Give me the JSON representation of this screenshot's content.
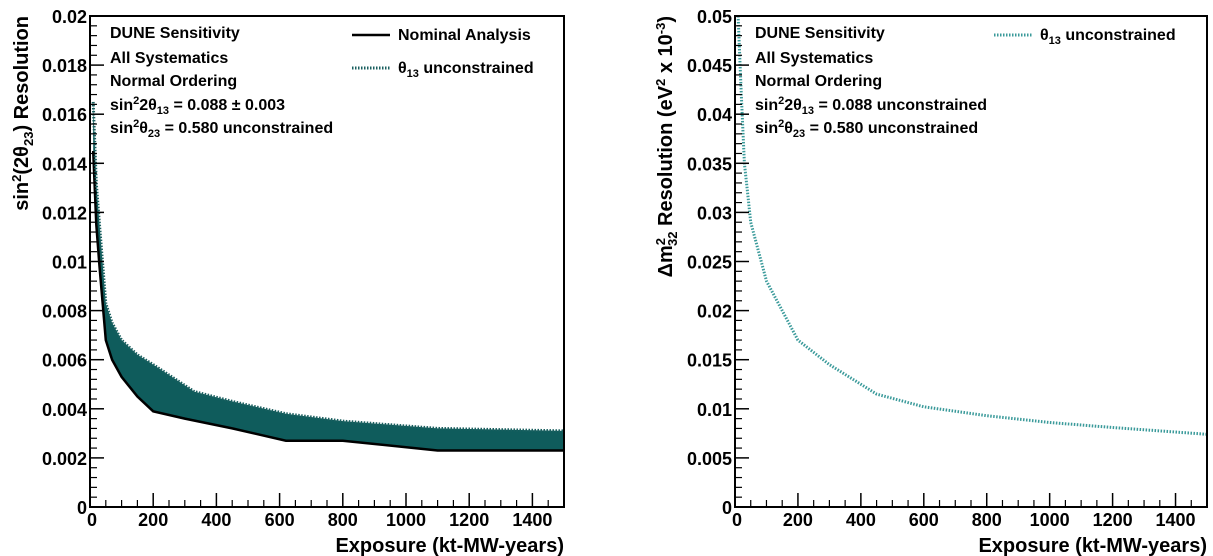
{
  "chart_data": [
    {
      "type": "area",
      "xlabel": "Exposure (kt-MW-years)",
      "ylabel_parts": [
        "sin",
        "2",
        "(2θ",
        "23",
        ") Resolution"
      ],
      "xlim": [
        0,
        1500
      ],
      "ylim": [
        0,
        0.02
      ],
      "xticks": [
        0,
        200,
        400,
        600,
        800,
        1000,
        1200,
        1400
      ],
      "xtick_labels": [
        "0",
        "200",
        "400",
        "600",
        "800",
        "1000",
        "1200",
        "1400"
      ],
      "yticks": [
        0,
        0.002,
        0.004,
        0.006,
        0.008,
        0.01,
        0.012,
        0.014,
        0.016,
        0.018,
        0.02
      ],
      "ytick_labels": [
        "0",
        "0.002",
        "0.004",
        "0.006",
        "0.008",
        "0.01",
        "0.012",
        "0.014",
        "0.016",
        "0.018",
        "0.02"
      ],
      "annotation": {
        "line1": "DUNE Sensitivity",
        "line2": "All Systematics",
        "line3": "Normal Ordering",
        "line4_parts": [
          "sin",
          "2",
          "2θ",
          "13",
          " = 0.088 ± 0.003"
        ],
        "line5_parts": [
          "sin",
          "2",
          "θ",
          "23",
          " = 0.580 unconstrained"
        ]
      },
      "legend": {
        "placement": "top-right",
        "entries": [
          {
            "label": "Nominal Analysis",
            "style": "solid",
            "color": "#000000"
          },
          {
            "label_parts": [
              "θ",
              "13",
              " unconstrained"
            ],
            "style": "dotted",
            "color": "#1a5f5f"
          }
        ]
      },
      "band_fill": "#0f5c5c",
      "series": [
        {
          "name": "Nominal Analysis",
          "x": [
            10,
            20,
            30,
            50,
            70,
            100,
            150,
            200,
            300,
            450,
            620,
            800,
            1100,
            1500
          ],
          "y": [
            0.0145,
            0.0115,
            0.0098,
            0.0068,
            0.006,
            0.0053,
            0.0045,
            0.0039,
            0.0036,
            0.0032,
            0.0027,
            0.0027,
            0.0023,
            0.0023
          ]
        },
        {
          "name": "θ13 unconstrained",
          "x": [
            10,
            20,
            30,
            50,
            70,
            100,
            150,
            200,
            330,
            450,
            620,
            800,
            1100,
            1500
          ],
          "y": [
            0.0165,
            0.0132,
            0.0115,
            0.0083,
            0.0075,
            0.0068,
            0.0062,
            0.0058,
            0.0047,
            0.0043,
            0.0038,
            0.0035,
            0.0032,
            0.0031
          ]
        }
      ]
    },
    {
      "type": "line",
      "xlabel": "Exposure (kt-MW-years)",
      "ylabel_parts": [
        "Δm",
        "2",
        "32",
        " Resolution (eV",
        "2",
        " x 10",
        "-3",
        ")"
      ],
      "xlim": [
        0,
        1500
      ],
      "ylim": [
        0,
        0.05
      ],
      "xticks": [
        0,
        200,
        400,
        600,
        800,
        1000,
        1200,
        1400
      ],
      "xtick_labels": [
        "0",
        "200",
        "400",
        "600",
        "800",
        "1000",
        "1200",
        "1400"
      ],
      "yticks": [
        0,
        0.005,
        0.01,
        0.015,
        0.02,
        0.025,
        0.03,
        0.035,
        0.04,
        0.045,
        0.05
      ],
      "ytick_labels": [
        "0",
        "0.005",
        "0.01",
        "0.015",
        "0.02",
        "0.025",
        "0.03",
        "0.035",
        "0.04",
        "0.045",
        "0.05"
      ],
      "annotation": {
        "line1": "DUNE Sensitivity",
        "line2": "All Systematics",
        "line3": "Normal Ordering",
        "line4_parts": [
          "sin",
          "2",
          "2θ",
          "13",
          " = 0.088 unconstrained"
        ],
        "line5_parts": [
          "sin",
          "2",
          "θ",
          "23",
          " = 0.580 unconstrained"
        ]
      },
      "legend": {
        "placement": "top-right",
        "entries": [
          {
            "label_parts": [
              "θ",
              "13",
              " unconstrained"
            ],
            "style": "dotted",
            "color": "#3a9a9a"
          }
        ]
      },
      "series": [
        {
          "name": "θ13 unconstrained",
          "x": [
            10,
            20,
            30,
            40,
            50,
            75,
            100,
            150,
            200,
            300,
            450,
            600,
            800,
            1000,
            1200,
            1500
          ],
          "y": [
            0.05,
            0.042,
            0.035,
            0.032,
            0.029,
            0.026,
            0.023,
            0.02,
            0.017,
            0.0145,
            0.0115,
            0.0102,
            0.0093,
            0.0086,
            0.0081,
            0.0074
          ]
        }
      ]
    }
  ]
}
